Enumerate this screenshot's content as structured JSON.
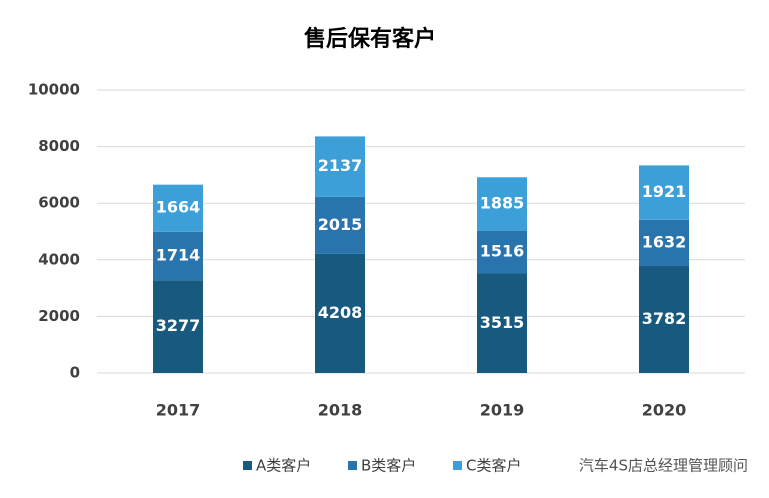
{
  "chart_data": {
    "type": "stacked_bar",
    "title": "售后保有客户",
    "categories": [
      "2017",
      "2018",
      "2019",
      "2020"
    ],
    "series": [
      {
        "name": "A类客户",
        "color": "#17597f",
        "values": [
          3277,
          4208,
          3515,
          3782
        ]
      },
      {
        "name": "B类客户",
        "color": "#2a74ad",
        "values": [
          1714,
          2015,
          1516,
          1632
        ]
      },
      {
        "name": "C类客户",
        "color": "#3c9fd8",
        "values": [
          1664,
          2137,
          1885,
          1921
        ]
      }
    ],
    "ylim": [
      0,
      10000
    ],
    "yticks": [
      0,
      2000,
      4000,
      6000,
      8000,
      10000
    ],
    "grid": true,
    "legend": "bottom",
    "watermark": "汽车4S店总经理管理顾问"
  }
}
